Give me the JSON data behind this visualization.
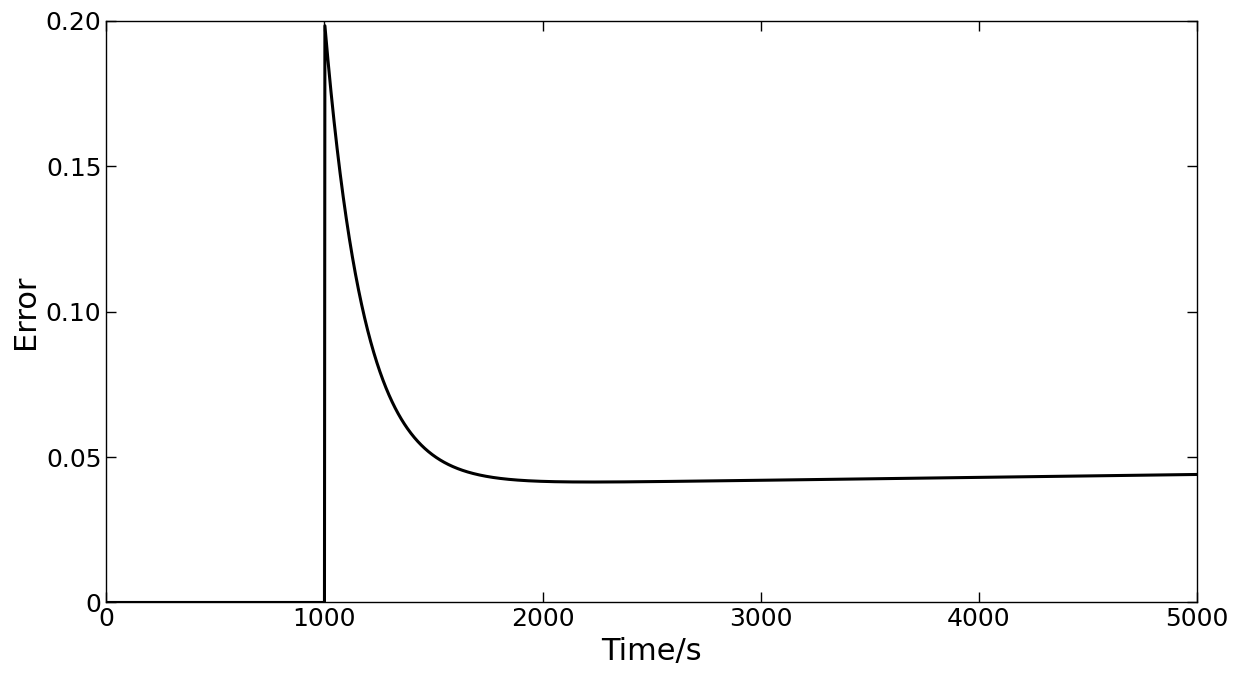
{
  "xlabel": "Time/s",
  "ylabel": "Error",
  "xlim": [
    0,
    5000
  ],
  "ylim": [
    0,
    0.2
  ],
  "xticks": [
    0,
    1000,
    2000,
    3000,
    4000,
    5000
  ],
  "yticks": [
    0,
    0.05,
    0.1,
    0.15,
    0.2
  ],
  "line_color": "#000000",
  "line_width": 2.2,
  "background_color": "#ffffff",
  "xlabel_fontsize": 22,
  "ylabel_fontsize": 22,
  "tick_fontsize": 18,
  "peak_time": 1000,
  "peak_value": 0.2,
  "settle_value": 0.04,
  "final_value": 0.044,
  "decay_constant": 0.003,
  "ytick_labels": [
    "0",
    "0.05",
    "0.10",
    "0.15",
    "0.20"
  ]
}
